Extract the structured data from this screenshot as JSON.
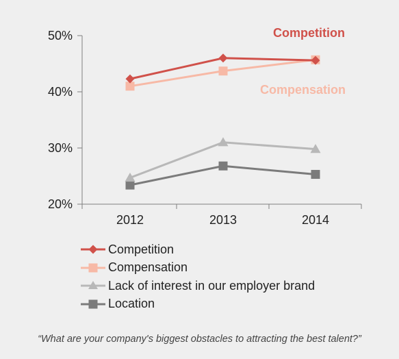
{
  "chart_data": {
    "type": "line",
    "categories": [
      "2012",
      "2013",
      "2014"
    ],
    "series": [
      {
        "name": "Competition",
        "values": [
          42.3,
          46.0,
          45.6
        ],
        "color": "#d0514a",
        "marker": "diamond"
      },
      {
        "name": "Compensation",
        "values": [
          41.0,
          43.7,
          45.7
        ],
        "color": "#f7b9a6",
        "marker": "square"
      },
      {
        "name": "Lack of interest in our employer brand",
        "values": [
          24.7,
          31.0,
          29.8
        ],
        "color": "#b8b8b8",
        "marker": "triangle"
      },
      {
        "name": "Location",
        "values": [
          23.4,
          26.8,
          25.3
        ],
        "color": "#7b7b7b",
        "marker": "square"
      }
    ],
    "ylim": [
      20,
      50
    ],
    "yticks": [
      {
        "value": 20,
        "label": "20%"
      },
      {
        "value": 30,
        "label": "30%"
      },
      {
        "value": 40,
        "label": "40%"
      },
      {
        "value": 50,
        "label": "50%"
      }
    ],
    "grid": false,
    "legend_position": "bottom",
    "annotations": [
      {
        "text": "Competition",
        "color": "#d0514a"
      },
      {
        "text": "Compensation",
        "color": "#f7b9a6"
      }
    ]
  },
  "caption": "“What are your company's  biggest obstacles to attracting the best talent?”"
}
